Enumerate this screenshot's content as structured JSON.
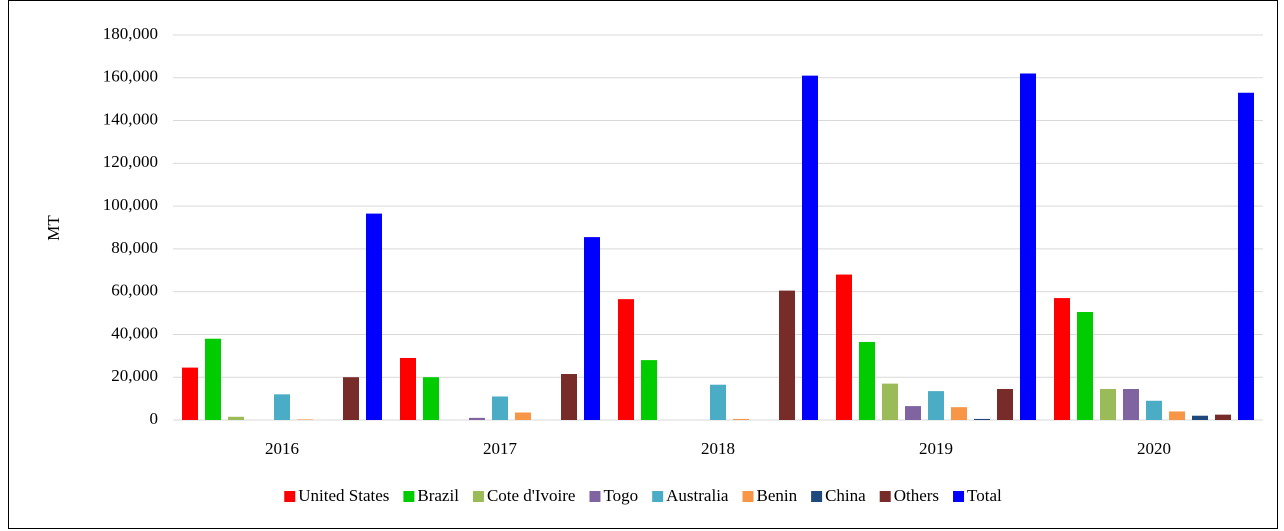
{
  "chart_data": {
    "type": "bar",
    "y_label": "MT",
    "categories": [
      "2016",
      "2017",
      "2018",
      "2019",
      "2020"
    ],
    "series": [
      {
        "name": "United States",
        "color": "#ff0000",
        "values": [
          24500,
          29000,
          56500,
          68000,
          57000
        ]
      },
      {
        "name": "Brazil",
        "color": "#00cc00",
        "values": [
          38000,
          20000,
          28000,
          36500,
          50500
        ]
      },
      {
        "name": "Cote d'Ivoire",
        "color": "#9bbb59",
        "values": [
          1500,
          0,
          0,
          17000,
          14500
        ]
      },
      {
        "name": "Togo",
        "color": "#8064a2",
        "values": [
          0,
          1000,
          0,
          6500,
          14500
        ]
      },
      {
        "name": "Australia",
        "color": "#4bacc6",
        "values": [
          12000,
          11000,
          16500,
          13500,
          9000
        ]
      },
      {
        "name": "Benin",
        "color": "#f79646",
        "values": [
          300,
          3500,
          500,
          6000,
          4000
        ]
      },
      {
        "name": "China",
        "color": "#1f497d",
        "values": [
          0,
          0,
          0,
          500,
          2000
        ]
      },
      {
        "name": "Others",
        "color": "#772c2a",
        "values": [
          20000,
          21500,
          60500,
          14500,
          2500
        ]
      },
      {
        "name": "Total",
        "color": "#0000ff",
        "values": [
          96500,
          85500,
          161000,
          162000,
          153000
        ]
      }
    ],
    "ylim": [
      0,
      180000
    ],
    "yticks": [
      0,
      {
        "value": 20000,
        "label": "20,000"
      },
      {
        "value": 40000,
        "label": "40,000"
      },
      {
        "value": 60000,
        "label": "60,000"
      },
      {
        "value": 80000,
        "label": "80,000"
      },
      {
        "value": 100000,
        "label": "100,000"
      },
      {
        "value": 120000,
        "label": "120,000"
      },
      {
        "value": 140000,
        "label": "140,000"
      },
      {
        "value": 160000,
        "label": "160,000"
      },
      {
        "value": 180000,
        "label": "180,000"
      }
    ],
    "grid": true,
    "legend": "bottom"
  }
}
